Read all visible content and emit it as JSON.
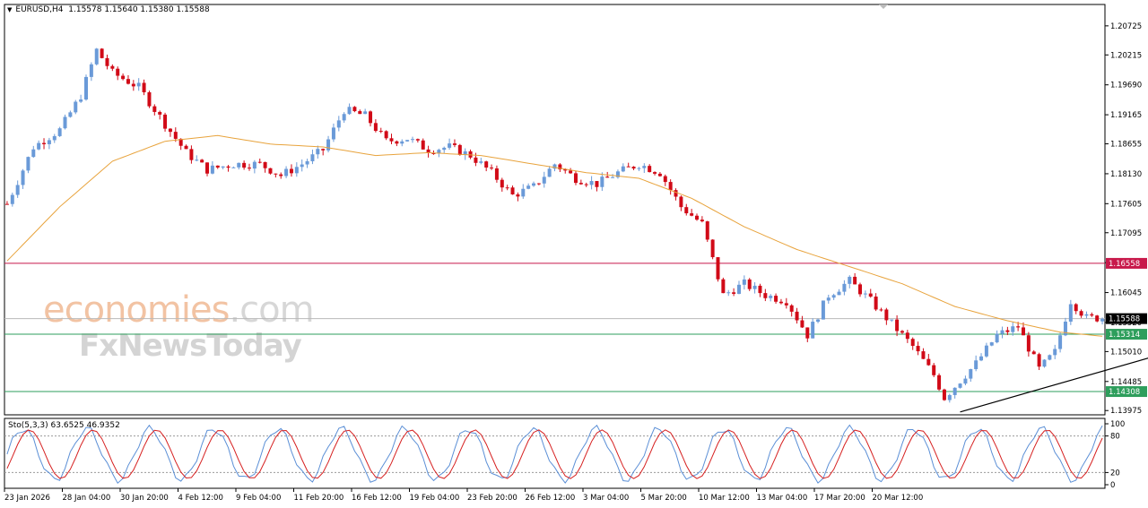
{
  "header": {
    "symbol_tf": "EURUSD,H4",
    "ohlc": "1.15578 1.15640 1.15380 1.15588"
  },
  "watermark": {
    "line1_a": "economies",
    "line1_b": ".com",
    "line2": "FxNewsToday"
  },
  "colors": {
    "bull": "#6a9ad8",
    "bear": "#d10a17",
    "ma": "#e8a33c",
    "resistance": "#c8194b",
    "support": "#2e9e5c",
    "current": "#b8b8b8",
    "stoch_main": "#5b8fd6",
    "stoch_signal": "#d62020",
    "trendline": "#000000"
  },
  "chart_data": {
    "type": "candlestick",
    "symbol": "EURUSD",
    "timeframe": "H4",
    "ylim": [
      1.139,
      1.211
    ],
    "y_ticks": [
      "1.20725",
      "1.20215",
      "1.19690",
      "1.19165",
      "1.18655",
      "1.18130",
      "1.17605",
      "1.17095",
      "1.16570",
      "1.16045",
      "1.15520",
      "1.15010",
      "1.14485",
      "1.13975"
    ],
    "x_labels": [
      "23 Jan 2026",
      "28 Jan 04:00",
      "30 Jan 20:00",
      "4 Feb 12:00",
      "9 Feb 04:00",
      "11 Feb 20:00",
      "16 Feb 12:00",
      "19 Feb 04:00",
      "23 Feb 20:00",
      "26 Feb 12:00",
      "3 Mar 04:00",
      "5 Mar 20:00",
      "10 Mar 12:00",
      "13 Mar 04:00",
      "17 Mar 20:00",
      "20 Mar 12:00"
    ],
    "close_path": [
      [
        0,
        1.176
      ],
      [
        5,
        1.186
      ],
      [
        10,
        1.189
      ],
      [
        14,
        1.195
      ],
      [
        17,
        1.203
      ],
      [
        20,
        1.199
      ],
      [
        25,
        1.1965
      ],
      [
        30,
        1.19
      ],
      [
        34,
        1.185
      ],
      [
        38,
        1.182
      ],
      [
        43,
        1.183
      ],
      [
        48,
        1.183
      ],
      [
        52,
        1.181
      ],
      [
        56,
        1.183
      ],
      [
        60,
        1.1855
      ],
      [
        64,
        1.1925
      ],
      [
        68,
        1.1915
      ],
      [
        72,
        1.187
      ],
      [
        76,
        1.1875
      ],
      [
        80,
        1.1855
      ],
      [
        84,
        1.186
      ],
      [
        88,
        1.1845
      ],
      [
        92,
        1.1815
      ],
      [
        96,
        1.1775
      ],
      [
        100,
        1.179
      ],
      [
        104,
        1.183
      ],
      [
        108,
        1.1805
      ],
      [
        112,
        1.1795
      ],
      [
        116,
        1.1815
      ],
      [
        120,
        1.183
      ],
      [
        124,
        1.1815
      ],
      [
        128,
        1.1755
      ],
      [
        132,
        1.1725
      ],
      [
        136,
        1.16
      ],
      [
        140,
        1.162
      ],
      [
        144,
        1.16
      ],
      [
        148,
        1.159
      ],
      [
        152,
        1.153
      ],
      [
        156,
        1.16
      ],
      [
        160,
        1.1625
      ],
      [
        164,
        1.159
      ],
      [
        168,
        1.155
      ],
      [
        172,
        1.151
      ],
      [
        176,
        1.146
      ],
      [
        178,
        1.142
      ],
      [
        180,
        1.144
      ],
      [
        184,
        1.148
      ],
      [
        188,
        1.153
      ],
      [
        192,
        1.1545
      ],
      [
        196,
        1.147
      ],
      [
        199,
        1.15
      ],
      [
        202,
        1.159
      ],
      [
        205,
        1.156
      ],
      [
        208,
        1.156
      ]
    ],
    "candles_count": 209,
    "moving_average": [
      [
        0,
        1.166
      ],
      [
        10,
        1.1755
      ],
      [
        20,
        1.1835
      ],
      [
        30,
        1.187
      ],
      [
        40,
        1.188
      ],
      [
        50,
        1.1865
      ],
      [
        60,
        1.186
      ],
      [
        70,
        1.1845
      ],
      [
        80,
        1.185
      ],
      [
        90,
        1.1845
      ],
      [
        100,
        1.183
      ],
      [
        110,
        1.1815
      ],
      [
        120,
        1.1805
      ],
      [
        130,
        1.177
      ],
      [
        140,
        1.172
      ],
      [
        150,
        1.168
      ],
      [
        160,
        1.165
      ],
      [
        170,
        1.162
      ],
      [
        180,
        1.158
      ],
      [
        190,
        1.1555
      ],
      [
        200,
        1.1535
      ],
      [
        208,
        1.1528
      ]
    ],
    "horizontal_levels": [
      {
        "price": 1.16558,
        "label": "1.16558",
        "color": "resistance"
      },
      {
        "price": 1.15588,
        "label": "1.15588",
        "color": "current"
      },
      {
        "price": 1.15314,
        "label": "1.15314",
        "color": "support"
      },
      {
        "price": 1.14308,
        "label": "1.14308",
        "color": "support"
      }
    ],
    "trendline": {
      "x1": 181,
      "y1": 1.1395,
      "x2": 232,
      "y2": 1.153
    },
    "stochastic": {
      "label": "Sto(5,3,3) 63.6525 46.9352",
      "ylim": [
        0,
        100
      ],
      "y_ticks": [
        "100",
        "80",
        "20",
        "0"
      ],
      "levels": [
        80,
        20
      ]
    }
  }
}
